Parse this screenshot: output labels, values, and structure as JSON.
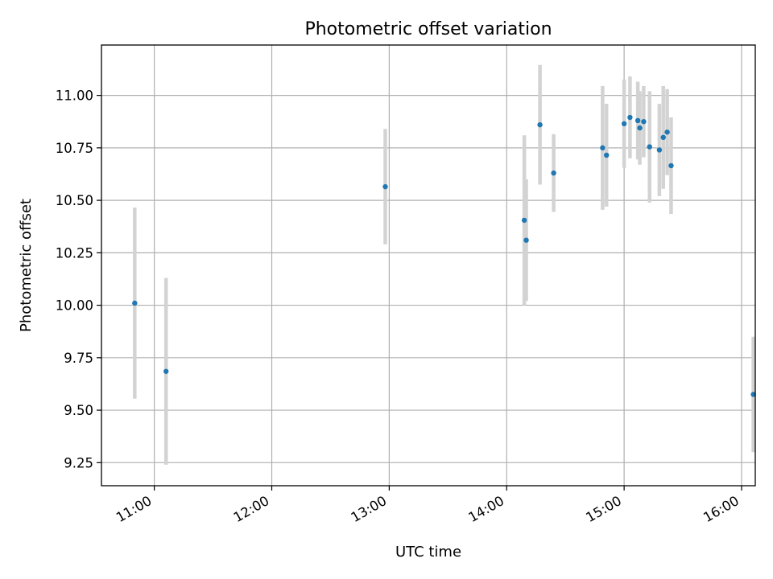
{
  "chart_data": {
    "type": "scatter",
    "title": "Photometric offset variation",
    "xlabel": "UTC time",
    "ylabel": "Photometric offset",
    "x_axis_type": "time",
    "x_ticks": [
      "11:00",
      "12:00",
      "13:00",
      "14:00",
      "15:00",
      "16:00"
    ],
    "xlim": [
      "10:33",
      "16:07"
    ],
    "y_ticks": [
      "9.25",
      "9.50",
      "9.75",
      "10.00",
      "10.25",
      "10.50",
      "10.75",
      "11.00"
    ],
    "ylim": [
      9.14,
      11.24
    ],
    "grid": true,
    "marker_color": "#1f77b4",
    "errorbar_color": "#d3d3d3",
    "points": [
      {
        "x": "10:50",
        "y": 10.01,
        "err": 0.455
      },
      {
        "x": "11:06",
        "y": 9.685,
        "err": 0.445
      },
      {
        "x": "12:58",
        "y": 10.565,
        "err": 0.275
      },
      {
        "x": "14:09",
        "y": 10.405,
        "err": 0.405
      },
      {
        "x": "14:10",
        "y": 10.31,
        "err": 0.29
      },
      {
        "x": "14:17",
        "y": 10.86,
        "err": 0.285
      },
      {
        "x": "14:24",
        "y": 10.63,
        "err": 0.185
      },
      {
        "x": "14:49",
        "y": 10.75,
        "err": 0.295
      },
      {
        "x": "14:51",
        "y": 10.715,
        "err": 0.245
      },
      {
        "x": "15:00",
        "y": 10.865,
        "err": 0.21
      },
      {
        "x": "15:03",
        "y": 10.895,
        "err": 0.195
      },
      {
        "x": "15:07",
        "y": 10.88,
        "err": 0.185
      },
      {
        "x": "15:08",
        "y": 10.845,
        "err": 0.175
      },
      {
        "x": "15:10",
        "y": 10.875,
        "err": 0.17
      },
      {
        "x": "15:13",
        "y": 10.755,
        "err": 0.265
      },
      {
        "x": "15:18",
        "y": 10.74,
        "err": 0.22
      },
      {
        "x": "15:20",
        "y": 10.8,
        "err": 0.245
      },
      {
        "x": "15:22",
        "y": 10.825,
        "err": 0.205
      },
      {
        "x": "15:24",
        "y": 10.665,
        "err": 0.23
      },
      {
        "x": "16:06",
        "y": 9.575,
        "err": 0.275
      }
    ]
  }
}
